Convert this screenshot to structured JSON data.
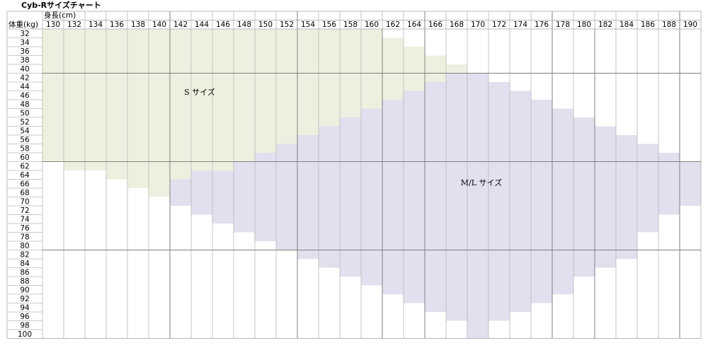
{
  "title": "Cyb-Rサイズチャート",
  "height_label": "身長(cm)",
  "weight_label": "体重(kg)",
  "heights": [
    130,
    132,
    134,
    136,
    138,
    140,
    142,
    144,
    146,
    148,
    150,
    152,
    154,
    156,
    158,
    160,
    162,
    164,
    166,
    168,
    170,
    172,
    174,
    176,
    178,
    180,
    182,
    184,
    186,
    188,
    190
  ],
  "weights": [
    32,
    34,
    36,
    38,
    40,
    42,
    44,
    46,
    48,
    50,
    52,
    54,
    56,
    58,
    60,
    62,
    64,
    66,
    68,
    70,
    72,
    74,
    76,
    78,
    80,
    82,
    84,
    86,
    88,
    90,
    92,
    94,
    96,
    98,
    100
  ],
  "regions": [
    {
      "label": "S サイズ",
      "color": "#eef0df",
      "rows": [
        {
          "weight": 32,
          "from": 130,
          "to": 160
        },
        {
          "weight": 34,
          "from": 130,
          "to": 162
        },
        {
          "weight": 36,
          "from": 130,
          "to": 164
        },
        {
          "weight": 38,
          "from": 130,
          "to": 166
        },
        {
          "weight": 40,
          "from": 130,
          "to": 168
        },
        {
          "weight": 42,
          "from": 130,
          "to": 166
        },
        {
          "weight": 44,
          "from": 130,
          "to": 164
        },
        {
          "weight": 46,
          "from": 130,
          "to": 162
        },
        {
          "weight": 48,
          "from": 130,
          "to": 160
        },
        {
          "weight": 50,
          "from": 130,
          "to": 158
        },
        {
          "weight": 52,
          "from": 130,
          "to": 156
        },
        {
          "weight": 54,
          "from": 130,
          "to": 154
        },
        {
          "weight": 56,
          "from": 130,
          "to": 152
        },
        {
          "weight": 58,
          "from": 130,
          "to": 150
        },
        {
          "weight": 60,
          "from": 130,
          "to": 148
        },
        {
          "weight": 62,
          "from": 132,
          "to": 146
        },
        {
          "weight": 64,
          "from": 136,
          "to": 142
        },
        {
          "weight": 66,
          "from": 138,
          "to": 140
        },
        {
          "weight": 68,
          "from": 140,
          "to": 140
        }
      ]
    },
    {
      "label": "M/L サイズ",
      "color": "#e2dfee",
      "rows": [
        {
          "weight": 42,
          "from": 168,
          "to": 170
        },
        {
          "weight": 44,
          "from": 166,
          "to": 172
        },
        {
          "weight": 46,
          "from": 164,
          "to": 174
        },
        {
          "weight": 48,
          "from": 162,
          "to": 176
        },
        {
          "weight": 50,
          "from": 160,
          "to": 178
        },
        {
          "weight": 52,
          "from": 158,
          "to": 180
        },
        {
          "weight": 54,
          "from": 156,
          "to": 182
        },
        {
          "weight": 56,
          "from": 154,
          "to": 184
        },
        {
          "weight": 58,
          "from": 152,
          "to": 186
        },
        {
          "weight": 60,
          "from": 150,
          "to": 188
        },
        {
          "weight": 62,
          "from": 148,
          "to": 190
        },
        {
          "weight": 64,
          "from": 144,
          "to": 190
        },
        {
          "weight": 66,
          "from": 142,
          "to": 190
        },
        {
          "weight": 68,
          "from": 142,
          "to": 190
        },
        {
          "weight": 70,
          "from": 142,
          "to": 190
        },
        {
          "weight": 72,
          "from": 144,
          "to": 188
        },
        {
          "weight": 74,
          "from": 146,
          "to": 186
        },
        {
          "weight": 76,
          "from": 148,
          "to": 186
        },
        {
          "weight": 78,
          "from": 150,
          "to": 184
        },
        {
          "weight": 80,
          "from": 152,
          "to": 184
        },
        {
          "weight": 82,
          "from": 154,
          "to": 184
        },
        {
          "weight": 84,
          "from": 156,
          "to": 182
        },
        {
          "weight": 86,
          "from": 158,
          "to": 180
        },
        {
          "weight": 88,
          "from": 160,
          "to": 178
        },
        {
          "weight": 90,
          "from": 162,
          "to": 178
        },
        {
          "weight": 92,
          "from": 164,
          "to": 176
        },
        {
          "weight": 94,
          "from": 166,
          "to": 174
        },
        {
          "weight": 96,
          "from": 168,
          "to": 172
        },
        {
          "weight": 98,
          "from": 170,
          "to": 170
        },
        {
          "weight": 100,
          "from": 170,
          "to": 170
        }
      ]
    }
  ]
}
